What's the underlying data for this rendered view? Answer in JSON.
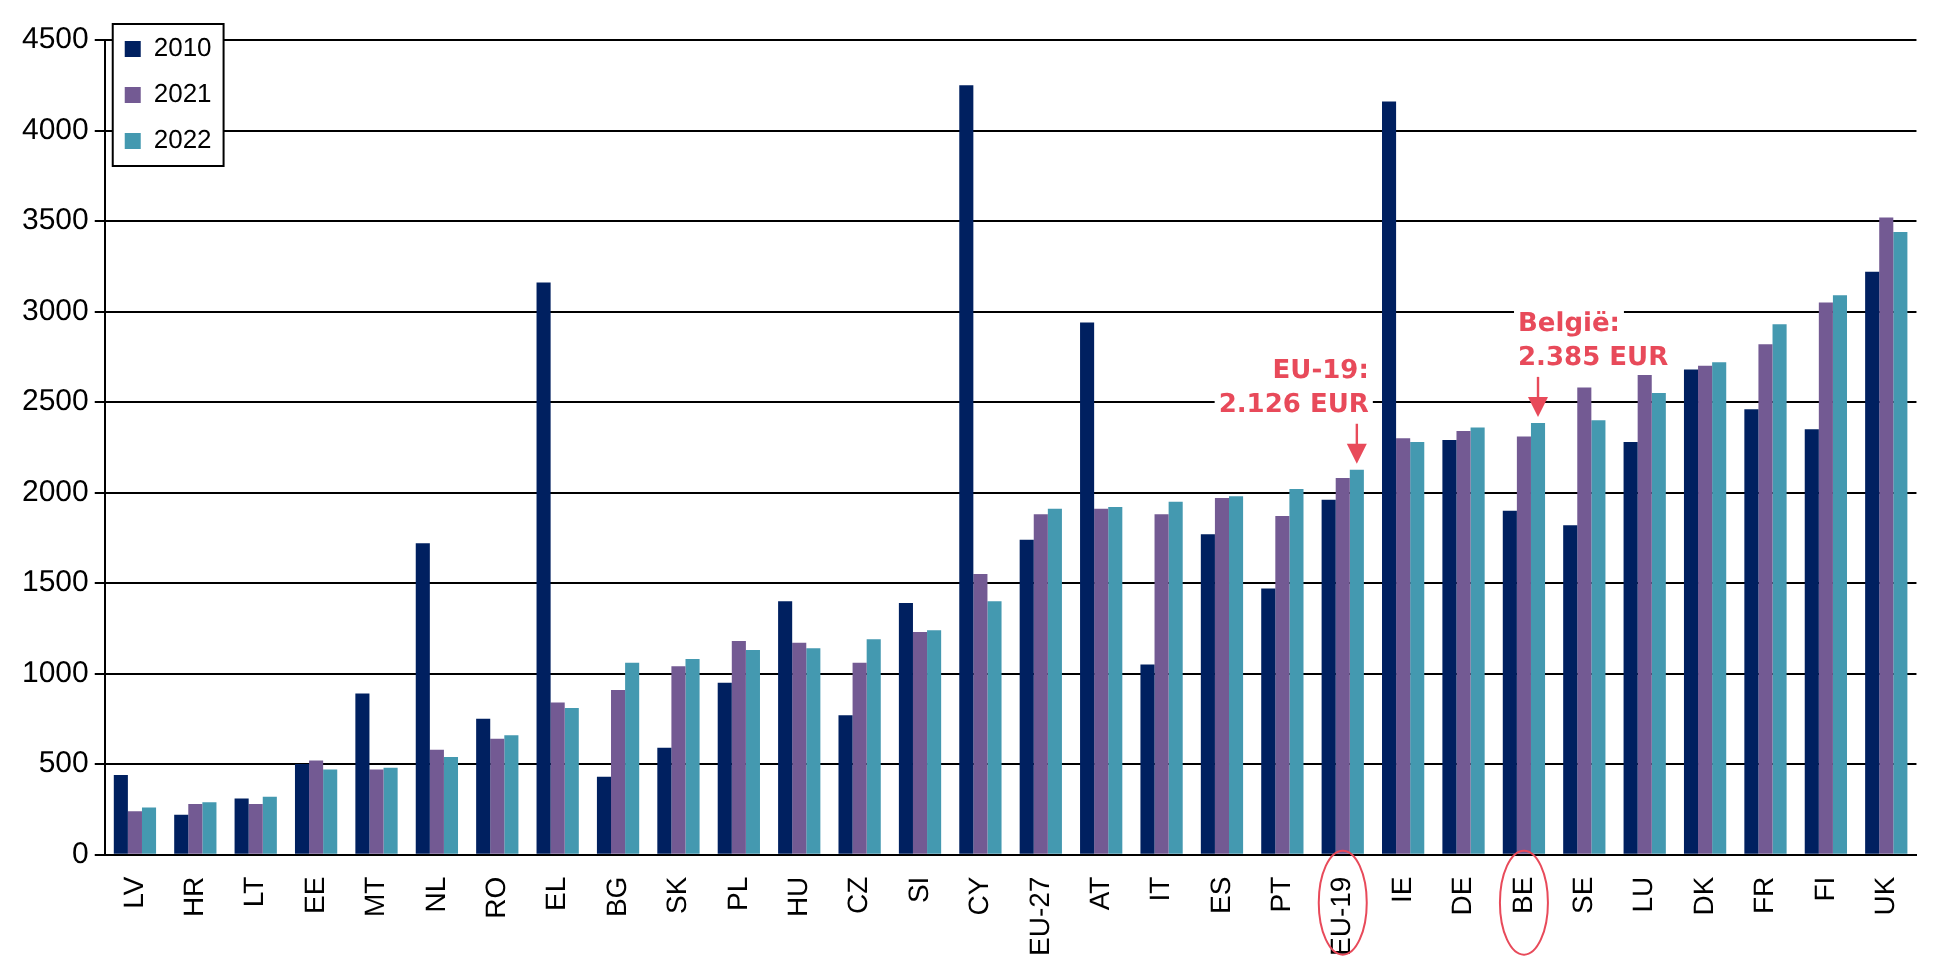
{
  "chart_data": {
    "type": "bar",
    "categories": [
      "LV",
      "HR",
      "LT",
      "EE",
      "MT",
      "NL",
      "RO",
      "EL",
      "BG",
      "SK",
      "PL",
      "HU",
      "CZ",
      "SI",
      "CY",
      "EU-27",
      "AT",
      "IT",
      "ES",
      "PT",
      "EU-19",
      "IE",
      "DE",
      "BE",
      "SE",
      "LU",
      "DK",
      "FR",
      "FI",
      "UK"
    ],
    "series": [
      {
        "name": "2010",
        "color": "#002060",
        "values": [
          440,
          220,
          310,
          500,
          890,
          1720,
          750,
          3160,
          430,
          590,
          950,
          1400,
          770,
          1390,
          4250,
          1740,
          2940,
          1050,
          1770,
          1470,
          1960,
          4160,
          2290,
          1900,
          1820,
          2280,
          2680,
          2460,
          2350,
          3220
        ]
      },
      {
        "name": "2021",
        "color": "#735a93",
        "values": [
          240,
          280,
          280,
          520,
          470,
          580,
          640,
          840,
          910,
          1040,
          1180,
          1170,
          1060,
          1230,
          1550,
          1880,
          1910,
          1880,
          1970,
          1870,
          2080,
          2300,
          2340,
          2310,
          2580,
          2650,
          2700,
          2820,
          3050,
          3520
        ]
      },
      {
        "name": "2022",
        "color": "#4499b0",
        "values": [
          260,
          290,
          320,
          470,
          480,
          540,
          660,
          810,
          1060,
          1080,
          1130,
          1140,
          1190,
          1240,
          1400,
          1910,
          1920,
          1950,
          1980,
          2020,
          2126,
          2280,
          2360,
          2385,
          2400,
          2550,
          2720,
          2930,
          3090,
          3440
        ]
      }
    ],
    "ylim": [
      0,
      4500
    ],
    "yticks": [
      0,
      500,
      1000,
      1500,
      2000,
      2500,
      3000,
      3500,
      4000,
      4500
    ],
    "grid": "y",
    "legend": "top left",
    "annotations": [
      {
        "text": "EU-19:\n2.126 EUR",
        "x": "EU-19",
        "y": 2126
      },
      {
        "text": "België:\n2.385 EUR",
        "x": "BE",
        "y": 2385
      }
    ]
  }
}
